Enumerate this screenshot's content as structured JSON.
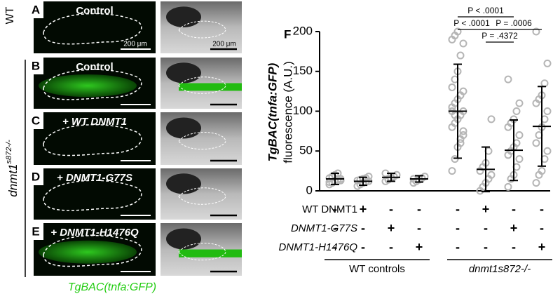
{
  "figure_letter": "F",
  "row_labels": {
    "wt": "WT",
    "mutant_gene": "dnmt1",
    "mutant_allele": "s872-/-"
  },
  "panels": [
    {
      "letter": "A",
      "label": "Control"
    },
    {
      "letter": "B",
      "label": "Control"
    },
    {
      "letter": "C",
      "label": "+ WT DNMT1"
    },
    {
      "letter": "D",
      "label": "+ DNMT1-G77S"
    },
    {
      "letter": "E",
      "label": "+ DNMT1-H1476Q"
    }
  ],
  "scale_bars": [
    "200 μm",
    "200 μm"
  ],
  "caption": "TgBAC(tnfa:GFP)",
  "chart_data": {
    "type": "dot",
    "y_label": [
      "TgBAC(tnfa:GFP)",
      "fluorescence (A.U.)"
    ],
    "ylim": [
      0,
      200
    ],
    "yticks": [
      0,
      50,
      100,
      150,
      200
    ],
    "values": [
      15,
      12,
      17,
      15,
      100,
      27,
      51,
      81
    ],
    "errors": [
      7,
      5,
      5,
      4,
      59,
      28,
      38,
      50
    ],
    "points": [
      [
        8,
        10,
        12,
        14,
        15,
        16,
        18,
        20,
        22,
        13,
        11,
        17
      ],
      [
        6,
        8,
        10,
        11,
        12,
        13,
        14,
        15,
        16,
        18
      ],
      [
        12,
        14,
        16,
        18,
        20,
        22,
        15
      ],
      [
        10,
        12,
        14,
        16,
        18,
        15
      ],
      [
        25,
        40,
        55,
        65,
        75,
        80,
        85,
        90,
        95,
        100,
        105,
        110,
        115,
        120,
        125,
        130,
        140,
        150,
        170,
        185,
        190,
        195,
        200,
        60,
        70,
        100,
        95
      ],
      [
        0,
        5,
        10,
        15,
        20,
        25,
        30,
        35,
        50,
        90
      ],
      [
        5,
        15,
        20,
        30,
        40,
        45,
        50,
        55,
        60,
        70,
        80,
        85,
        90,
        100,
        110,
        140
      ],
      [
        10,
        20,
        25,
        40,
        50,
        60,
        70,
        80,
        90,
        100,
        110,
        115,
        120,
        135,
        160,
        200
      ]
    ],
    "point_color": "#b5b5b5",
    "condition_rows": [
      {
        "label": "WT DNMT1",
        "signs": [
          "-",
          "+",
          "-",
          "-",
          "-",
          "+",
          "-",
          "-"
        ]
      },
      {
        "label": "DNMT1-G77S",
        "signs": [
          "-",
          "-",
          "+",
          "-",
          "-",
          "-",
          "+",
          "-"
        ]
      },
      {
        "label": "DNMT1-H1476Q",
        "signs": [
          "-",
          "-",
          "-",
          "+",
          "-",
          "-",
          "-",
          "+"
        ]
      }
    ],
    "groups": [
      {
        "label": "WT controls",
        "from": 0,
        "to": 3
      },
      {
        "label": "dnmt1s872-/-",
        "from": 4,
        "to": 7
      }
    ],
    "comparisons": [
      {
        "label": "P < .0001",
        "from": 4,
        "to": 6,
        "level": 0
      },
      {
        "label": "P < .0001",
        "from": 4,
        "to": 5,
        "level": 1
      },
      {
        "label": "P = .0006",
        "from": 5,
        "to": 7,
        "level": 1
      },
      {
        "label": "P = .4372",
        "from": 5,
        "to": 6,
        "level": 2
      }
    ]
  }
}
